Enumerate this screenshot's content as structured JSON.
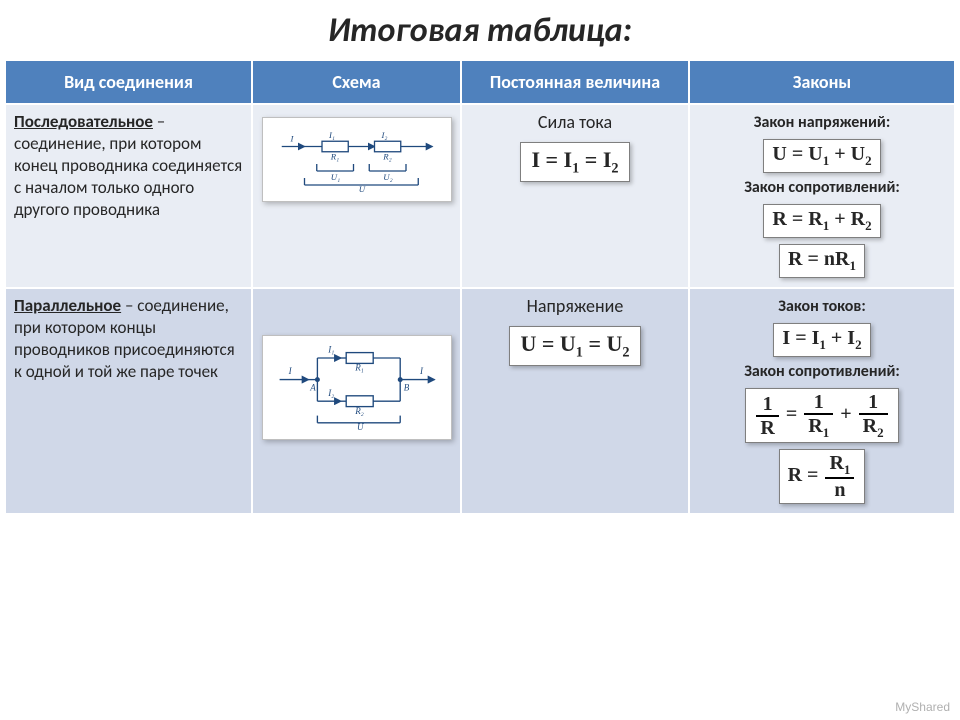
{
  "title": "Итоговая таблица:",
  "colors": {
    "header_bg": "#4f81bd",
    "header_text": "#ffffff",
    "row_odd": "#e9edf4",
    "row_even": "#d0d8e8",
    "text": "#262626",
    "formula_bg": "#ffffff",
    "formula_border": "#7f7f7f"
  },
  "columns": [
    "Вид соединения",
    "Схема",
    "Постоянная величина",
    "Законы"
  ],
  "column_widths_pct": [
    26,
    22,
    24,
    28
  ],
  "rows": [
    {
      "name": "Последовательное",
      "desc": " – соединение, при котором конец проводника соединяется с началом только одного другого проводника",
      "schema": {
        "type": "series",
        "labels": {
          "I": "I",
          "I1": "I₁",
          "I2": "I₂",
          "R1": "R₁",
          "R2": "R₂",
          "U1": "U₁",
          "U2": "U₂",
          "U": "U"
        }
      },
      "constant": {
        "label": "Сила тока",
        "formula_html": "I = I<span class='sub'>1</span> = I<span class='sub'>2</span>"
      },
      "laws": [
        {
          "label": "Закон напряжений:",
          "formula_html": "U = U<span class='sub'>1</span> + U<span class='sub'>2</span>"
        },
        {
          "label": "Закон сопротивлений:",
          "formula_html": "R = R<span class='sub'>1</span> + R<span class='sub'>2</span>"
        },
        {
          "label": "",
          "formula_html": "R = nR<span class='sub'>1</span>"
        }
      ]
    },
    {
      "name": "Параллельное",
      "desc": " – соединение, при котором концы проводников присоединяются к одной и той же паре точек",
      "schema": {
        "type": "parallel",
        "labels": {
          "I": "I",
          "I1": "I₁",
          "I2": "I₂",
          "R1": "R₁",
          "R2": "R₂",
          "A": "A",
          "B": "B",
          "U": "U"
        }
      },
      "constant": {
        "label": "Напряжение",
        "formula_html": "U = U<span class='sub'>1</span> = U<span class='sub'>2</span>"
      },
      "laws": [
        {
          "label": "Закон токов:",
          "formula_html": "I = I<span class='sub'>1</span> + I<span class='sub'>2</span>"
        },
        {
          "label": "Закон сопротивлений:",
          "formula_html": "<span class='frac'><span class='num'>1</span><span class='den'>R</span></span> = <span class='frac'><span class='num'>1</span><span class='den'>R<span class='sub'>1</span></span></span> + <span class='frac'><span class='num'>1</span><span class='den'>R<span class='sub'>2</span></span></span>"
        },
        {
          "label": "",
          "formula_html": "R = <span class='frac'><span class='num'>R<span class='sub'>1</span></span><span class='den'>n</span></span>"
        }
      ]
    }
  ],
  "watermark": "MyShared"
}
